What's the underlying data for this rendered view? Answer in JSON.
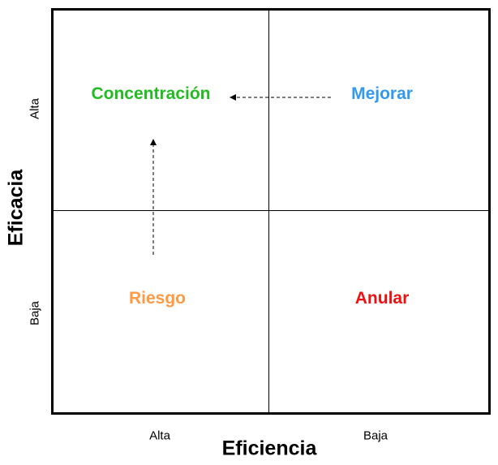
{
  "quadrants": {
    "top_left": {
      "label": "Concentración",
      "color": "#22bb22"
    },
    "top_right": {
      "label": "Mejorar",
      "color": "#3399ee"
    },
    "bottom_left": {
      "label": "Riesgo",
      "color": "#ff9944"
    },
    "bottom_right": {
      "label": "Anular",
      "color": "#ee1111"
    }
  },
  "x_axis": {
    "title": "Eficiencia",
    "ticks": [
      "Alta",
      "Baja"
    ]
  },
  "y_axis": {
    "title": "Eficacia",
    "ticks": [
      "Alta",
      "Baja"
    ]
  },
  "arrows": [
    {
      "from": "Mejorar",
      "to": "Concentración",
      "style": "dashed"
    },
    {
      "from": "Riesgo",
      "to": "Concentración",
      "style": "dashed"
    }
  ]
}
